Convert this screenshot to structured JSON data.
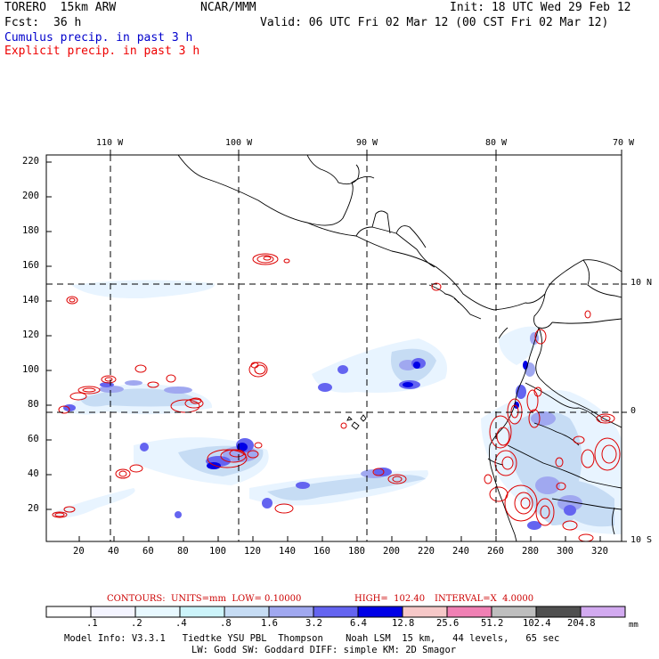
{
  "header": {
    "model": "TORERO  15km ARW",
    "org": "NCAR/MMM",
    "init": "Init: 18 UTC Wed 29 Feb 12",
    "fcst_label": "Fcst:",
    "fcst_value": "36 h",
    "valid": "Valid: 06 UTC Fri 02 Mar 12 (00 CST Fri 02 Mar 12)",
    "legend_cumulus": "Cumulus precip. in past 3 h",
    "legend_explicit": "Explicit precip. in past 3 h"
  },
  "colors": {
    "cumulus": "#0000cc",
    "explicit": "#ee0000",
    "contour": "#dd0000"
  },
  "map": {
    "longitude_labels": [
      "110 W",
      "100 W",
      "90 W",
      "80 W",
      "70 W"
    ],
    "latitude_labels": [
      "10 N",
      "0",
      "10 S"
    ],
    "y_ticks": [
      "220",
      "200",
      "180",
      "160",
      "140",
      "120",
      "100",
      "80",
      "60",
      "40",
      "20"
    ],
    "x_ticks": [
      "20",
      "40",
      "60",
      "80",
      "100",
      "120",
      "140",
      "160",
      "180",
      "200",
      "220",
      "240",
      "260",
      "280",
      "300",
      "320"
    ]
  },
  "contour_info": {
    "units": "CONTOURS:  UNITS=mm  LOW= 0.10000",
    "high": "HIGH=  102.40",
    "interval": "INTERVAL=X  4.0000"
  },
  "colorbar": {
    "labels": [
      ".1",
      ".2",
      ".4",
      ".8",
      "1.6",
      "3.2",
      "6.4",
      "12.8",
      "25.6",
      "51.2",
      "102.4",
      "204.8"
    ],
    "unit": "mm",
    "colors": [
      "#ffffff",
      "#f4f4ff",
      "#e8f8ff",
      "#ccf4fa",
      "#c6dcf4",
      "#a0a8f0",
      "#6464f0",
      "#0000e6",
      "#f6c8c8",
      "#f080b4",
      "#bebebe",
      "#505050",
      "#d2aaf0"
    ]
  },
  "footer": {
    "line1": "Model Info: V3.3.1   Tiedtke YSU PBL  Thompson    Noah LSM  15 km,   44 levels,   65 sec",
    "line2": "LW: Godd SW: Goddard DIFF: simple KM: 2D Smagor"
  }
}
